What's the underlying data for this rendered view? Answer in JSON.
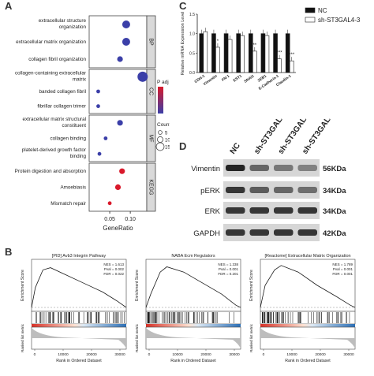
{
  "panel_labels": {
    "a": "A",
    "b": "B",
    "c": "C",
    "d": "D"
  },
  "panelA": {
    "groups": [
      {
        "name": "BP",
        "terms": [
          {
            "label": "extracellular structure organization",
            "gene_ratio": 0.09,
            "padj_level": "low",
            "count_level": "medium"
          },
          {
            "label": "extracellular matrix organization",
            "gene_ratio": 0.09,
            "padj_level": "low",
            "count_level": "medium"
          },
          {
            "label": "collagen fibril organization",
            "gene_ratio": 0.075,
            "padj_level": "low",
            "count_level": "small"
          }
        ]
      },
      {
        "name": "CC",
        "terms": [
          {
            "label": "collagen-containing extracellular matrix",
            "gene_ratio": 0.13,
            "padj_level": "low",
            "count_level": "large"
          },
          {
            "label": "banded collagen fibril",
            "gene_ratio": 0.022,
            "padj_level": "low",
            "count_level": "tiny"
          },
          {
            "label": "fibrillar collagen trimer",
            "gene_ratio": 0.022,
            "padj_level": "low",
            "count_level": "tiny"
          }
        ]
      },
      {
        "name": "MF",
        "terms": [
          {
            "label": "extracellular matrix structural constituent",
            "gene_ratio": 0.075,
            "padj_level": "low",
            "count_level": "small"
          },
          {
            "label": "collagen binding",
            "gene_ratio": 0.04,
            "padj_level": "low",
            "count_level": "tiny"
          },
          {
            "label": "platelet-derived growth factor binding",
            "gene_ratio": 0.025,
            "padj_level": "low",
            "count_level": "tiny"
          }
        ]
      },
      {
        "name": "KEGG",
        "terms": [
          {
            "label": "Protein digestion and absorption",
            "gene_ratio": 0.08,
            "padj_level": "high",
            "count_level": "small"
          },
          {
            "label": "Amoebiasis",
            "gene_ratio": 0.07,
            "padj_level": "high",
            "count_level": "small"
          },
          {
            "label": "Mismatch repair",
            "gene_ratio": 0.05,
            "padj_level": "high",
            "count_level": "tiny"
          }
        ]
      }
    ],
    "xlabel": "GeneRatio",
    "xticks": [
      "0.05",
      "0.10"
    ],
    "legend_padj_title": "P adj",
    "legend_counts_title": "Counts",
    "legend_counts": [
      "5",
      "10",
      "15"
    ],
    "colors": {
      "low": "#3b3fa8",
      "high": "#d9192b"
    }
  },
  "chart_data": {
    "type": "bar",
    "ylabel": "Relative mRNA Expression Level",
    "categories": [
      "CDH-1",
      "Vimentin",
      "FN-1",
      "EST1",
      "SNAI1",
      "ZEB1",
      "E-Cadherin-1",
      "Claudin-1"
    ],
    "yticks": [
      "0.0",
      "0.5",
      "1.0",
      "1.5"
    ],
    "ylim": [
      0,
      1.5
    ],
    "series": [
      {
        "name": "NC",
        "color": "#111111",
        "values": [
          1.0,
          1.0,
          1.0,
          1.0,
          1.0,
          1.0,
          1.0,
          1.0
        ]
      },
      {
        "name": "sh-ST3GAL4-3",
        "color": "#ffffff",
        "values": [
          1.05,
          0.65,
          0.85,
          0.95,
          0.55,
          0.95,
          0.35,
          0.3
        ]
      }
    ],
    "annotations": [
      "*",
      "**",
      "***",
      "***"
    ]
  },
  "panelD": {
    "lanes": [
      "NC",
      "sh-ST3GAL4-1",
      "sh-ST3GAL4-2",
      "sh-ST3GAL4-3"
    ],
    "proteins": [
      {
        "name": "Vimentin",
        "size": "56KDa"
      },
      {
        "name": "pERK",
        "size": "34KDa"
      },
      {
        "name": "ERK",
        "size": "34KDa"
      },
      {
        "name": "GAPDH",
        "size": "42KDa"
      }
    ]
  },
  "panelB": [
    {
      "title": "[PID] Avb3 Integrin Pathway",
      "stats": [
        "NES = 1.613",
        "Pval = 0.002",
        "FDR = 0.022"
      ]
    },
    {
      "title": "NABA Ecm Regulators",
      "stats": [
        "NES = 1.338",
        "Pval = 0.001",
        "FDR = 0.201"
      ]
    },
    {
      "title": "[Reactome] Extracellular Matrix Organization",
      "stats": [
        "NES = 1.789",
        "Pval = 0.001",
        "FDR = 0.001"
      ]
    }
  ],
  "panelB_common": {
    "ylabel_top": "Enrichment Score",
    "ylabel_bottom": "Ranked list metric",
    "xlabel": "Rank in Ordered Dataset",
    "xticks": [
      "0",
      "10000",
      "20000",
      "30000"
    ]
  }
}
